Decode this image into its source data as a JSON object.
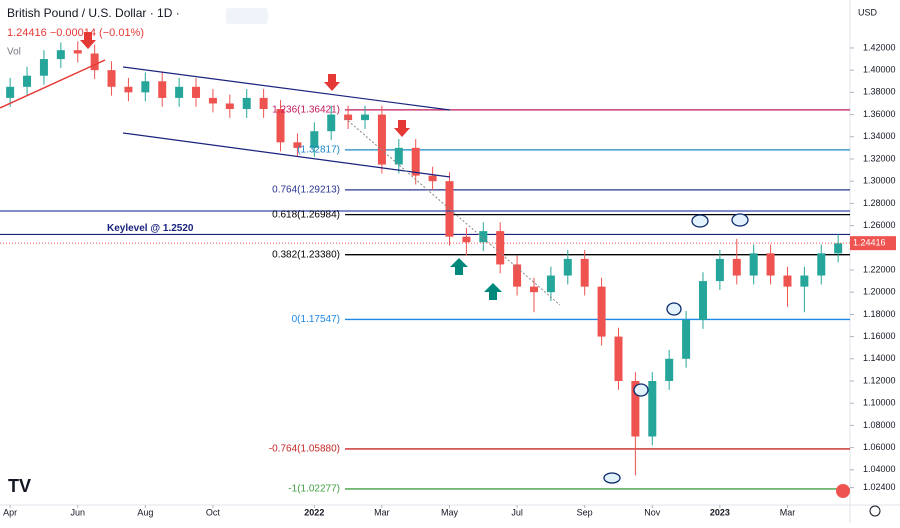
{
  "chart_data": {
    "type": "candlestick",
    "title": "British Pound / U.S. Dollar · 1D ·",
    "quote": "1.24416 −0.00014 (−0.01%)",
    "volume_label": "Vol",
    "currency": "USD",
    "price_badge": {
      "value": 1.24416,
      "label": "1.24416"
    },
    "x": [
      0,
      0.5,
      1,
      1.5,
      2,
      2.5,
      3,
      3.5,
      4,
      4.5,
      5,
      5.5,
      6,
      6.5,
      7,
      7.5,
      8,
      8.5,
      9,
      9.5,
      10,
      10.5,
      11,
      11.5,
      12,
      12.5,
      13,
      13.5,
      14,
      14.5,
      15,
      15.5,
      16,
      16.5,
      17,
      17.5,
      18,
      18.5,
      19,
      19.5,
      20,
      20.5,
      21,
      21.5,
      22,
      22.5,
      23,
      23.5,
      24,
      24.5
    ],
    "open": [
      1.375,
      1.385,
      1.395,
      1.41,
      1.418,
      1.415,
      1.4,
      1.385,
      1.38,
      1.39,
      1.375,
      1.385,
      1.375,
      1.37,
      1.365,
      1.375,
      1.365,
      1.335,
      1.33,
      1.345,
      1.36,
      1.355,
      1.36,
      1.315,
      1.33,
      1.305,
      1.3,
      1.25,
      1.245,
      1.255,
      1.225,
      1.205,
      1.2,
      1.215,
      1.23,
      1.205,
      1.16,
      1.12,
      1.07,
      1.12,
      1.14,
      1.175,
      1.21,
      1.23,
      1.215,
      1.235,
      1.215,
      1.205,
      1.215,
      1.235
    ],
    "high": [
      1.393,
      1.403,
      1.418,
      1.425,
      1.426,
      1.423,
      1.408,
      1.393,
      1.398,
      1.398,
      1.393,
      1.393,
      1.383,
      1.378,
      1.383,
      1.383,
      1.373,
      1.343,
      1.353,
      1.368,
      1.368,
      1.368,
      1.368,
      1.338,
      1.338,
      1.313,
      1.308,
      1.258,
      1.263,
      1.263,
      1.233,
      1.213,
      1.223,
      1.238,
      1.238,
      1.213,
      1.168,
      1.128,
      1.128,
      1.148,
      1.183,
      1.218,
      1.238,
      1.248,
      1.243,
      1.243,
      1.223,
      1.223,
      1.243,
      1.252
    ],
    "low": [
      1.367,
      1.377,
      1.387,
      1.402,
      1.407,
      1.392,
      1.377,
      1.372,
      1.372,
      1.367,
      1.367,
      1.367,
      1.362,
      1.357,
      1.357,
      1.357,
      1.327,
      1.322,
      1.322,
      1.337,
      1.347,
      1.347,
      1.307,
      1.307,
      1.297,
      1.292,
      1.242,
      1.233,
      1.237,
      1.217,
      1.197,
      1.182,
      1.192,
      1.207,
      1.197,
      1.152,
      1.112,
      1.035,
      1.062,
      1.112,
      1.132,
      1.167,
      1.202,
      1.207,
      1.207,
      1.207,
      1.187,
      1.182,
      1.207,
      1.227
    ],
    "close": [
      1.385,
      1.395,
      1.41,
      1.418,
      1.415,
      1.4,
      1.385,
      1.38,
      1.39,
      1.375,
      1.385,
      1.375,
      1.37,
      1.365,
      1.375,
      1.365,
      1.335,
      1.33,
      1.345,
      1.36,
      1.355,
      1.36,
      1.315,
      1.33,
      1.305,
      1.3,
      1.25,
      1.245,
      1.255,
      1.225,
      1.205,
      1.2,
      1.215,
      1.23,
      1.205,
      1.16,
      1.12,
      1.07,
      1.12,
      1.14,
      1.175,
      1.21,
      1.23,
      1.215,
      1.235,
      1.215,
      1.205,
      1.215,
      1.235,
      1.244
    ],
    "up_color": "#26a69a",
    "down_color": "#ef5350",
    "xlim": [
      -0.3,
      24.85
    ],
    "xticks": [
      {
        "value": 0,
        "label": "Apr"
      },
      {
        "value": 2,
        "label": "Jun"
      },
      {
        "value": 4,
        "label": "Aug"
      },
      {
        "value": 6,
        "label": "Oct"
      },
      {
        "value": 9,
        "label": "2022"
      },
      {
        "value": 11,
        "label": "Mar"
      },
      {
        "value": 13,
        "label": "May"
      },
      {
        "value": 15,
        "label": "Jul"
      },
      {
        "value": 17,
        "label": "Sep"
      },
      {
        "value": 19,
        "label": "Nov"
      },
      {
        "value": 21,
        "label": "2023"
      },
      {
        "value": 23,
        "label": "Mar"
      }
    ],
    "ylim": [
      1.0083,
      1.4632
    ],
    "yticks": [
      {
        "value": 1.42,
        "label": "1.42000"
      },
      {
        "value": 1.4,
        "label": "1.40000"
      },
      {
        "value": 1.38,
        "label": "1.38000"
      },
      {
        "value": 1.36,
        "label": "1.36000"
      },
      {
        "value": 1.34,
        "label": "1.34000"
      },
      {
        "value": 1.32,
        "label": "1.32000"
      },
      {
        "value": 1.3,
        "label": "1.30000"
      },
      {
        "value": 1.28,
        "label": "1.28000"
      },
      {
        "value": 1.26,
        "label": "1.26000"
      },
      {
        "value": 1.24,
        "label": "1.24000"
      },
      {
        "value": 1.22,
        "label": "1.22000"
      },
      {
        "value": 1.2,
        "label": "1.20000"
      },
      {
        "value": 1.18,
        "label": "1.18000"
      },
      {
        "value": 1.16,
        "label": "1.16000"
      },
      {
        "value": 1.14,
        "label": "1.14000"
      },
      {
        "value": 1.12,
        "label": "1.12000"
      },
      {
        "value": 1.1,
        "label": "1.10000"
      },
      {
        "value": 1.08,
        "label": "1.08000"
      },
      {
        "value": 1.06,
        "label": "1.06000"
      },
      {
        "value": 1.04,
        "label": "1.04000"
      },
      {
        "value": 1.024,
        "label": "1.02400"
      }
    ],
    "levels": [
      {
        "label": "1.236(1.36421)",
        "value": 1.36421,
        "color": "#c2185b"
      },
      {
        "label": "(1.32817)",
        "value": 1.32817,
        "color": "#1e88c7"
      },
      {
        "label": "0.764(1.29213)",
        "value": 1.29213,
        "color": "#283593"
      },
      {
        "label": "0.618(1.26984)",
        "value": 1.26984,
        "color": "#000000"
      },
      {
        "label": "0.382(1.23380)",
        "value": 1.2338,
        "color": "#000000"
      },
      {
        "label": "0(1.17547)",
        "value": 1.17547,
        "color": "#1e88e5"
      },
      {
        "label": "-0.764(1.05880)",
        "value": 1.0588,
        "color": "#c62828"
      },
      {
        "label": "-1(1.02277)",
        "value": 1.02277,
        "color": "#43a047"
      }
    ],
    "keylevel": {
      "label": "Keylevel @ 1.2520",
      "value": 1.252,
      "color": "#1a237e"
    }
  }
}
